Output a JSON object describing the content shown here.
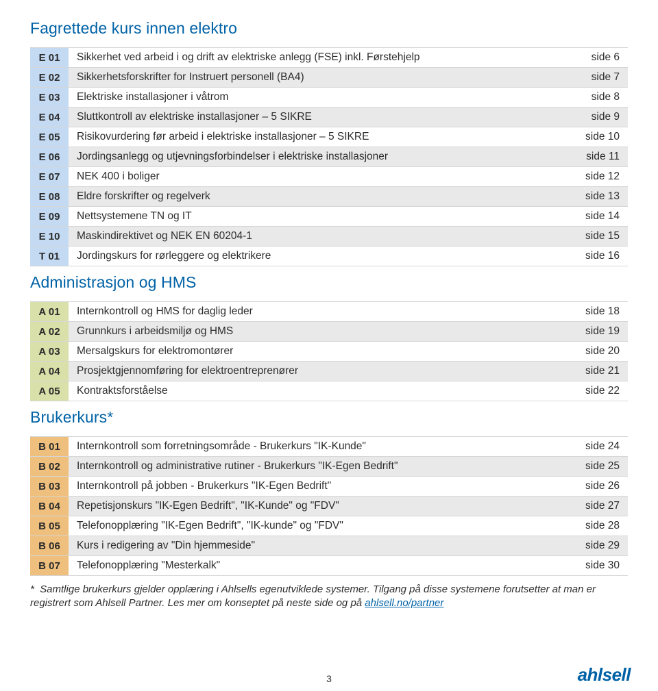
{
  "page_number": "3",
  "logo_text": "ahlsell",
  "colors": {
    "heading": "#0062a6",
    "row_even_bg": "#e9e9ea",
    "row_odd_bg": "#ffffff",
    "border": "#d6d6d6",
    "text": "#2d2d2d",
    "link": "#0062a6"
  },
  "sections": [
    {
      "heading": "Fagrettede kurs innen elektro",
      "code_bg": "#c4daf2",
      "rows": [
        {
          "code": "E 01",
          "desc": "Sikkerhet ved arbeid i og drift av elektriske anlegg (FSE) inkl. Førstehjelp",
          "page": "side 6"
        },
        {
          "code": "E 02",
          "desc": "Sikkerhetsforskrifter for Instruert personell (BA4)",
          "page": "side 7"
        },
        {
          "code": "E 03",
          "desc": "Elektriske installasjoner i våtrom",
          "page": "side 8"
        },
        {
          "code": "E 04",
          "desc": "Sluttkontroll av elektriske installasjoner – 5 SIKRE",
          "page": "side 9"
        },
        {
          "code": "E 05",
          "desc": "Risikovurdering før arbeid i elektriske installasjoner – 5 SIKRE",
          "page": "side 10"
        },
        {
          "code": "E 06",
          "desc": "Jordingsanlegg og utjevningsforbindelser i elektriske installasjoner",
          "page": "side 11"
        },
        {
          "code": "E 07",
          "desc": "NEK 400 i boliger",
          "page": "side 12"
        },
        {
          "code": "E 08",
          "desc": "Eldre forskrifter og regelverk",
          "page": "side 13"
        },
        {
          "code": "E 09",
          "desc": "Nettsystemene TN og IT",
          "page": "side 14"
        },
        {
          "code": "E 10",
          "desc": "Maskindirektivet og NEK EN 60204-1",
          "page": "side 15"
        },
        {
          "code": "T 01",
          "desc": "Jordingskurs for rørleggere og elektrikere",
          "page": "side 16"
        }
      ]
    },
    {
      "heading": "Administrasjon og HMS",
      "code_bg": "#d9e0a9",
      "rows": [
        {
          "code": "A 01",
          "desc": "Internkontroll og HMS for daglig leder",
          "page": "side 18"
        },
        {
          "code": "A 02",
          "desc": "Grunnkurs i arbeidsmiljø og HMS",
          "page": "side 19"
        },
        {
          "code": "A 03",
          "desc": "Mersalgskurs for elektromontører",
          "page": "side 20"
        },
        {
          "code": "A 04",
          "desc": "Prosjektgjennomføring for elektroentreprenører",
          "page": "side 21"
        },
        {
          "code": "A 05",
          "desc": "Kontraktsforståelse",
          "page": "side 22"
        }
      ]
    },
    {
      "heading": "Brukerkurs*",
      "code_bg": "#eebf7d",
      "rows": [
        {
          "code": "B 01",
          "desc": "Internkontroll som forretningsområde - Brukerkurs \"IK-Kunde\"",
          "page": "side 24"
        },
        {
          "code": "B 02",
          "desc": "Internkontroll og administrative rutiner - Brukerkurs \"IK-Egen Bedrift\"",
          "page": "side 25"
        },
        {
          "code": "B 03",
          "desc": "Internkontroll på jobben - Brukerkurs \"IK-Egen Bedrift\"",
          "page": "side 26"
        },
        {
          "code": "B 04",
          "desc": "Repetisjonskurs \"IK-Egen Bedrift\", \"IK-Kunde\" og \"FDV\"",
          "page": "side 27"
        },
        {
          "code": "B 05",
          "desc": "Telefonopplæring \"IK-Egen Bedrift\", \"IK-kunde\" og \"FDV\"",
          "page": "side 28"
        },
        {
          "code": "B 06",
          "desc": "Kurs i redigering av \"Din hjemmeside\"",
          "page": "side 29"
        },
        {
          "code": "B 07",
          "desc": "Telefonopplæring \"Mesterkalk\"",
          "page": "side 30"
        }
      ]
    }
  ],
  "footnote": {
    "prefix": "*  Samtlige brukerkurs gjelder opplæring i Ahlsells egenutviklede systemer. Tilgang på disse systemene forutsetter at man er registrert som Ahlsell Partner. Les mer om konseptet på neste side og på ",
    "link_text": "ahlsell.no/partner"
  }
}
